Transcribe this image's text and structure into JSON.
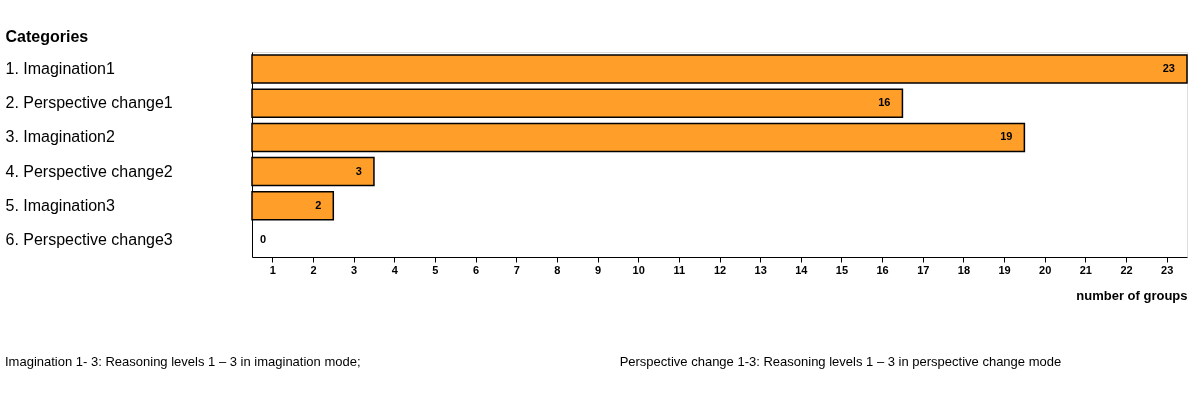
{
  "chart_data": {
    "type": "bar",
    "orientation": "horizontal",
    "ylabel": "Categories",
    "xlabel": "number of groups",
    "categories": [
      "1. Imagination1",
      "2. Perspective change1",
      "3. Imagination2",
      "4. Perspective change2",
      "5. Imagination3",
      "6. Perspective change3"
    ],
    "values": [
      23,
      16,
      19,
      3,
      2,
      0
    ],
    "color": "#ff9f2a",
    "data_labels": true,
    "xlim": [
      0,
      23
    ],
    "xticks": [
      {
        "value": 0.5,
        "label": "1"
      },
      {
        "value": 1.5,
        "label": "2"
      },
      {
        "value": 2.5,
        "label": "3"
      },
      {
        "value": 3.5,
        "label": "4"
      },
      {
        "value": 4.5,
        "label": "5"
      },
      {
        "value": 5.5,
        "label": "6"
      },
      {
        "value": 6.5,
        "label": "7"
      },
      {
        "value": 7.5,
        "label": "8"
      },
      {
        "value": 8.5,
        "label": "9"
      },
      {
        "value": 9.5,
        "label": "10"
      },
      {
        "value": 10.5,
        "label": "11"
      },
      {
        "value": 11.5,
        "label": "12"
      },
      {
        "value": 12.5,
        "label": "13"
      },
      {
        "value": 13.5,
        "label": "14"
      },
      {
        "value": 14.5,
        "label": "15"
      },
      {
        "value": 15.5,
        "label": "16"
      },
      {
        "value": 16.5,
        "label": "17"
      },
      {
        "value": 17.5,
        "label": "18"
      },
      {
        "value": 18.5,
        "label": "19"
      },
      {
        "value": 19.5,
        "label": "20"
      },
      {
        "value": 20.5,
        "label": "21"
      },
      {
        "value": 21.5,
        "label": "22"
      },
      {
        "value": 22.5,
        "label": "23"
      }
    ],
    "grid": false,
    "annotations": [
      "Imagination 1- 3: Reasoning levels 1 – 3 in imagination mode;",
      "Perspective change 1-3: Reasoning levels 1 – 3 in perspective change mode"
    ]
  }
}
